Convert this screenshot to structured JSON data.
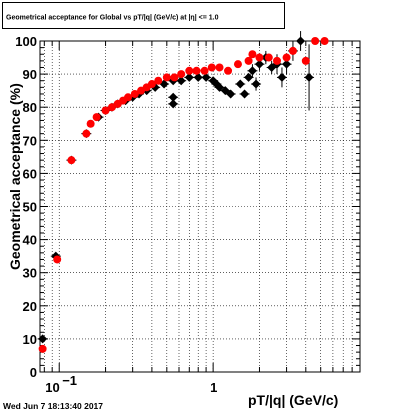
{
  "title": "Geometrical acceptance for Global vs pT/|q| (GeV/c) at |η| <= 1.0",
  "footer_date": "Wed Jun  7 18:13:40 2017",
  "colors": {
    "series_black": "#000000",
    "series_red": "#ff0000",
    "frame": "#000000",
    "background": "#ffffff"
  },
  "chart_data": {
    "type": "scatter",
    "title": "Geometrical acceptance for Global vs pT/|q| (GeV/c) at |η| <= 1.0",
    "xlabel": "pT/|q| (GeV/c)",
    "ylabel": "Geometrical acceptance (%)",
    "xscale": "log",
    "xlim": [
      0.075,
      9.0
    ],
    "ylim": [
      0,
      100
    ],
    "grid": true,
    "x_tick_labels": [
      {
        "value": 0.1,
        "base": "10",
        "exp": "−1"
      },
      {
        "value": 1,
        "base": "1",
        "exp": ""
      }
    ],
    "y_ticks": [
      0,
      10,
      20,
      30,
      40,
      50,
      60,
      70,
      80,
      90,
      100
    ],
    "series": [
      {
        "marker": "diamond",
        "color": "#000000",
        "points": [
          [
            0.078,
            10,
            0
          ],
          [
            0.095,
            35,
            0
          ],
          [
            0.12,
            64,
            0
          ],
          [
            0.15,
            72,
            0
          ],
          [
            0.18,
            77,
            0
          ],
          [
            0.2,
            79,
            0
          ],
          [
            0.22,
            80,
            0
          ],
          [
            0.24,
            81,
            0
          ],
          [
            0.27,
            82,
            0
          ],
          [
            0.3,
            83,
            0
          ],
          [
            0.33,
            84,
            0
          ],
          [
            0.37,
            85,
            0
          ],
          [
            0.42,
            86,
            0
          ],
          [
            0.48,
            87,
            0
          ],
          [
            0.55,
            88,
            0
          ],
          [
            0.55,
            81,
            0
          ],
          [
            0.55,
            83,
            0
          ],
          [
            0.62,
            88,
            0
          ],
          [
            0.7,
            89,
            0
          ],
          [
            0.8,
            89,
            0
          ],
          [
            0.9,
            89,
            0
          ],
          [
            1.0,
            88,
            0
          ],
          [
            1.05,
            87,
            0
          ],
          [
            1.1,
            86,
            0
          ],
          [
            1.2,
            85,
            0
          ],
          [
            1.3,
            84,
            1
          ],
          [
            1.5,
            87,
            0
          ],
          [
            1.6,
            84,
            1
          ],
          [
            1.7,
            89,
            1
          ],
          [
            1.8,
            91,
            2
          ],
          [
            1.9,
            87,
            2
          ],
          [
            2.0,
            93,
            2
          ],
          [
            2.2,
            95,
            2
          ],
          [
            2.4,
            92,
            2
          ],
          [
            2.6,
            93,
            3
          ],
          [
            2.8,
            89,
            3
          ],
          [
            3.0,
            93,
            3
          ],
          [
            3.3,
            97,
            3
          ],
          [
            3.7,
            100,
            3
          ],
          [
            4.2,
            89,
            10
          ]
        ]
      },
      {
        "marker": "circle",
        "color": "#ff0000",
        "points": [
          [
            0.078,
            7
          ],
          [
            0.097,
            34
          ],
          [
            0.12,
            64
          ],
          [
            0.15,
            72
          ],
          [
            0.16,
            75
          ],
          [
            0.175,
            77
          ],
          [
            0.2,
            79
          ],
          [
            0.22,
            80
          ],
          [
            0.24,
            81
          ],
          [
            0.26,
            82
          ],
          [
            0.28,
            83
          ],
          [
            0.31,
            84
          ],
          [
            0.34,
            85
          ],
          [
            0.37,
            86
          ],
          [
            0.4,
            87
          ],
          [
            0.44,
            88
          ],
          [
            0.5,
            89
          ],
          [
            0.56,
            89
          ],
          [
            0.62,
            90
          ],
          [
            0.7,
            91
          ],
          [
            0.78,
            91
          ],
          [
            0.88,
            91
          ],
          [
            0.98,
            92
          ],
          [
            1.1,
            92
          ],
          [
            1.25,
            91
          ],
          [
            1.45,
            93
          ],
          [
            1.7,
            94
          ],
          [
            1.8,
            96
          ],
          [
            2.0,
            95
          ],
          [
            2.3,
            95
          ],
          [
            2.6,
            94
          ],
          [
            3.0,
            95
          ],
          [
            3.3,
            97
          ],
          [
            4.0,
            94
          ],
          [
            4.6,
            100
          ],
          [
            5.3,
            100
          ]
        ]
      }
    ]
  }
}
